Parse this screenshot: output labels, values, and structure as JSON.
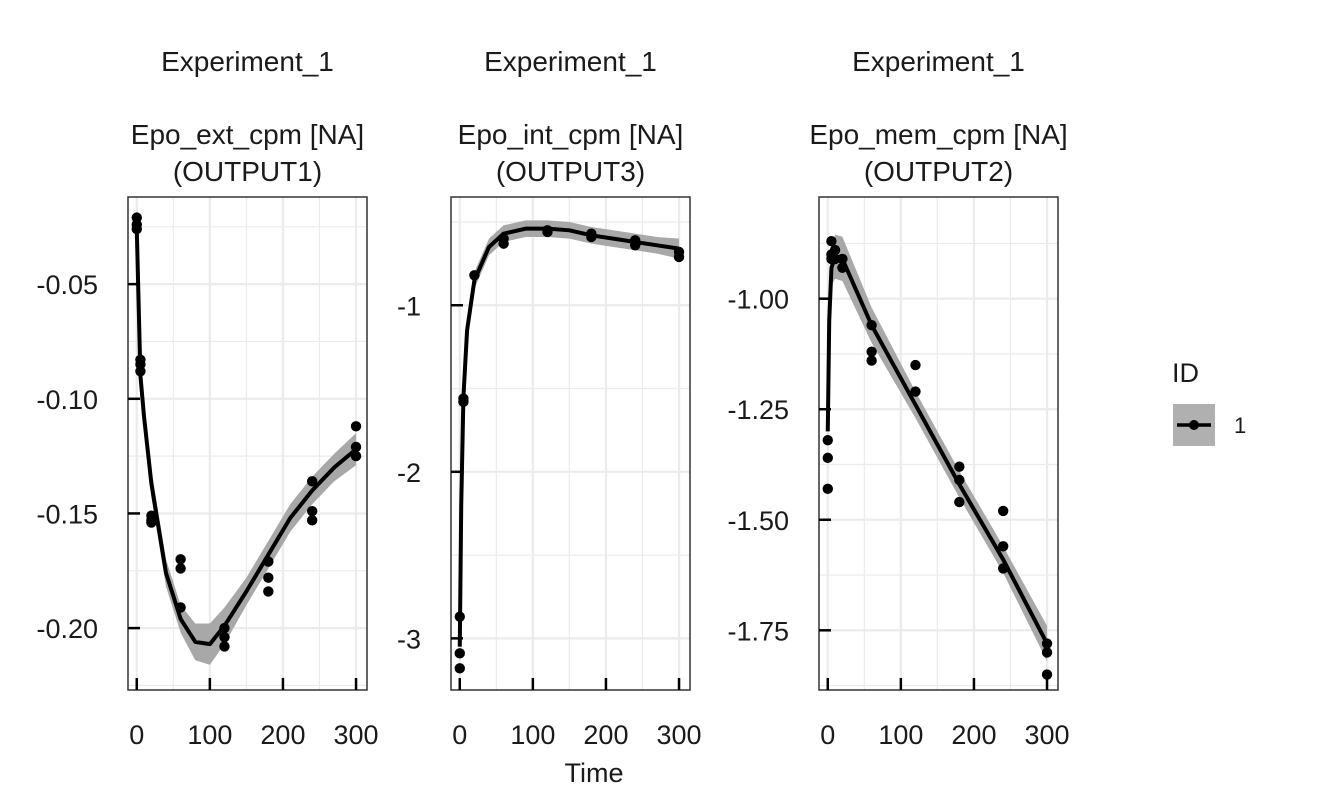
{
  "chart_data": [
    {
      "type": "line",
      "facet_title": "Experiment_1",
      "facet_subtitle_1": "Epo_ext_cpm [NA]",
      "facet_subtitle_2": "(OUTPUT1)",
      "xlim": [
        -12,
        315
      ],
      "ylim": [
        -0.227,
        -0.012
      ],
      "x_ticks": [
        0,
        100,
        200,
        300
      ],
      "y_ticks": [
        -0.05,
        -0.1,
        -0.15,
        -0.2
      ],
      "y_tick_labels": [
        "-0.05",
        "-0.10",
        "-0.15",
        "-0.20"
      ],
      "points": {
        "x": [
          0,
          0,
          0,
          5,
          5,
          5,
          20,
          20,
          20,
          60,
          60,
          60,
          120,
          120,
          120,
          180,
          180,
          180,
          240,
          240,
          240,
          300,
          300,
          300
        ],
        "y": [
          -0.021,
          -0.024,
          -0.026,
          -0.083,
          -0.085,
          -0.088,
          -0.151,
          -0.153,
          -0.154,
          -0.17,
          -0.174,
          -0.191,
          -0.2,
          -0.204,
          -0.208,
          -0.171,
          -0.178,
          -0.184,
          -0.136,
          -0.149,
          -0.153,
          -0.112,
          -0.121,
          -0.125
        ]
      },
      "fit": {
        "x": [
          0,
          5,
          10,
          20,
          40,
          60,
          80,
          100,
          120,
          150,
          180,
          210,
          240,
          270,
          300
        ],
        "y": [
          -0.026,
          -0.09,
          -0.108,
          -0.137,
          -0.176,
          -0.196,
          -0.206,
          -0.207,
          -0.199,
          -0.184,
          -0.168,
          -0.152,
          -0.14,
          -0.13,
          -0.122
        ]
      },
      "band_halfwidth": [
        0.01,
        0.008,
        0.007,
        0.006,
        0.006,
        0.006,
        0.008,
        0.009,
        0.008,
        0.006,
        0.006,
        0.006,
        0.006,
        0.006,
        0.007
      ]
    },
    {
      "type": "line",
      "facet_title": "Experiment_1",
      "facet_subtitle_1": "Epo_int_cpm [NA]",
      "facet_subtitle_2": "(OUTPUT3)",
      "xlim": [
        -12,
        315
      ],
      "ylim": [
        -3.31,
        -0.35
      ],
      "x_ticks": [
        0,
        100,
        200,
        300
      ],
      "y_ticks": [
        -1,
        -2,
        -3
      ],
      "y_tick_labels": [
        "-1",
        "-2",
        "-3"
      ],
      "points": {
        "x": [
          0,
          0,
          0,
          5,
          5,
          20,
          60,
          60,
          120,
          120,
          180,
          180,
          240,
          240,
          300,
          300
        ],
        "y": [
          -2.87,
          -3.09,
          -3.18,
          -1.56,
          -1.58,
          -0.82,
          -0.6,
          -0.63,
          -0.55,
          -0.56,
          -0.57,
          -0.59,
          -0.61,
          -0.64,
          -0.68,
          -0.71
        ]
      },
      "fit": {
        "x": [
          0,
          2,
          5,
          10,
          20,
          40,
          60,
          90,
          120,
          150,
          180,
          210,
          240,
          270,
          300
        ],
        "y": [
          -3.05,
          -2.2,
          -1.55,
          -1.15,
          -0.85,
          -0.65,
          -0.57,
          -0.54,
          -0.54,
          -0.55,
          -0.58,
          -0.6,
          -0.62,
          -0.64,
          -0.66
        ]
      },
      "band_halfwidth": [
        0.08,
        0.08,
        0.07,
        0.06,
        0.05,
        0.05,
        0.05,
        0.05,
        0.05,
        0.05,
        0.05,
        0.05,
        0.05,
        0.05,
        0.06
      ]
    },
    {
      "type": "line",
      "facet_title": "Experiment_1",
      "facet_subtitle_1": "Epo_mem_cpm [NA]",
      "facet_subtitle_2": "(OUTPUT2)",
      "xlim": [
        -12,
        315
      ],
      "ylim": [
        -1.885,
        -0.77
      ],
      "x_ticks": [
        0,
        100,
        200,
        300
      ],
      "y_ticks": [
        -1.0,
        -1.25,
        -1.5,
        -1.75
      ],
      "y_tick_labels": [
        "-1.00",
        "-1.25",
        "-1.50",
        "-1.75"
      ],
      "points": {
        "x": [
          0,
          0,
          0,
          5,
          5,
          5,
          10,
          10,
          20,
          20,
          60,
          60,
          60,
          120,
          120,
          180,
          180,
          180,
          240,
          240,
          240,
          300,
          300,
          300
        ],
        "y": [
          -1.32,
          -1.36,
          -1.43,
          -0.87,
          -0.9,
          -0.91,
          -0.89,
          -0.91,
          -0.91,
          -0.93,
          -1.06,
          -1.12,
          -1.14,
          -1.15,
          -1.21,
          -1.38,
          -1.41,
          -1.46,
          -1.48,
          -1.56,
          -1.61,
          -1.78,
          -1.8,
          -1.85
        ]
      },
      "fit": {
        "x": [
          0,
          2,
          5,
          10,
          20,
          60,
          120,
          180,
          240,
          300
        ],
        "y": [
          -1.3,
          -1.05,
          -0.93,
          -0.905,
          -0.91,
          -1.06,
          -1.24,
          -1.42,
          -1.59,
          -1.78
        ]
      },
      "band_halfwidth": [
        0.05,
        0.04,
        0.04,
        0.05,
        0.05,
        0.04,
        0.03,
        0.03,
        0.03,
        0.04
      ]
    }
  ],
  "x_axis_title": "Time",
  "legend": {
    "title": "ID",
    "label": "1"
  },
  "colors": {
    "line": "#000000",
    "band": "#a8a8a8",
    "grid": "#ebebeb",
    "panel_border": "#333333",
    "legend_key_bg": "#b0b0b0"
  }
}
